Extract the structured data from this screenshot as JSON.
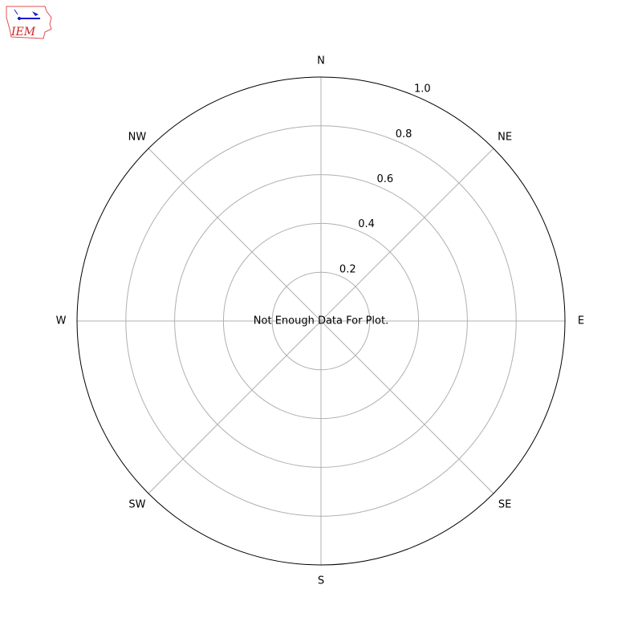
{
  "logo": {
    "text": "IEM",
    "colors": {
      "outline": "#e05050",
      "text": "#cc2222",
      "icon": "#1a1acc"
    }
  },
  "chart_data": {
    "type": "polar",
    "title": "",
    "directions": [
      "N",
      "NE",
      "E",
      "SE",
      "S",
      "SW",
      "W",
      "NW"
    ],
    "radial_ticks": [
      "0.2",
      "0.4",
      "0.6",
      "0.8",
      "1.0"
    ],
    "radial_tick_values": [
      0.2,
      0.4,
      0.6,
      0.8,
      1.0
    ],
    "rlim": [
      0,
      1.0
    ],
    "grid": true,
    "series": [],
    "annotation": "Not Enough Data For Plot.",
    "colors": {
      "grid": "#b0b0b0",
      "frame": "#000000"
    }
  }
}
